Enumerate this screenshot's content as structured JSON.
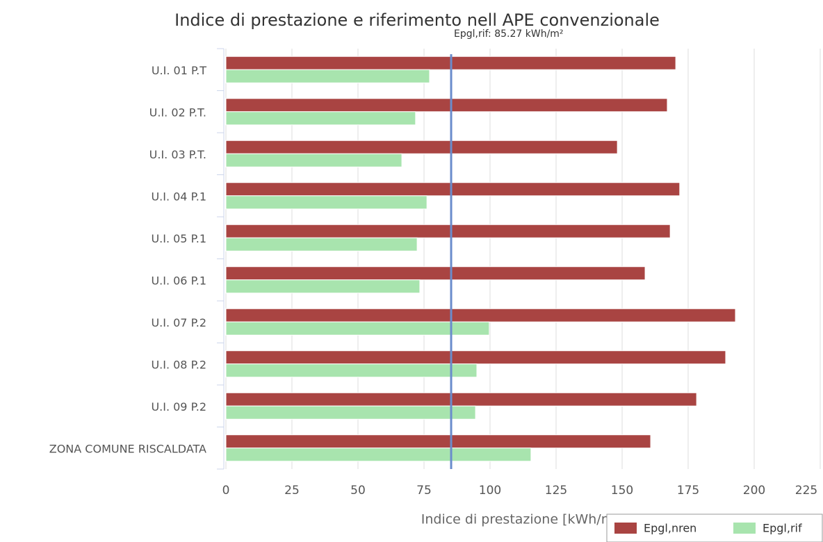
{
  "chart_data": {
    "type": "hbar",
    "title": "Indice di prestazione e riferimento nell APE convenzionale",
    "x_label": "Indice di prestazione [kWh/m²]",
    "categories": [
      "U.I. 01 P.T",
      "U.I. 02 P.T.",
      "U.I. 03 P.T.",
      "U.I. 04 P.1",
      "U.I. 05 P.1",
      "U.I. 06 P.1",
      "U.I. 07 P.2",
      "U.I. 08 P.2",
      "U.I. 09 P.2",
      "ZONA COMUNE RISCALDATA"
    ],
    "series": [
      {
        "name": "Epgl,nren",
        "color": "#a94442",
        "values": [
          170.3,
          167.1,
          148.2,
          171.8,
          168.2,
          158.7,
          192.9,
          189.2,
          178.2,
          160.8
        ]
      },
      {
        "name": "Epgl,rif",
        "color": "#a8e4ae",
        "values": [
          77.1,
          71.8,
          66.6,
          76.1,
          72.4,
          73.4,
          99.7,
          95.0,
          94.5,
          115.5
        ]
      }
    ],
    "reference_line": {
      "value": 85.27,
      "label": "Epgl,rif: 85.27 kWh/m²",
      "color": "#6a8ccc"
    },
    "xlim": [
      0,
      225
    ],
    "xticks": [
      0,
      25,
      50,
      75,
      100,
      125,
      150,
      175,
      200,
      225
    ],
    "grid": true,
    "legend": "bottom-right"
  }
}
